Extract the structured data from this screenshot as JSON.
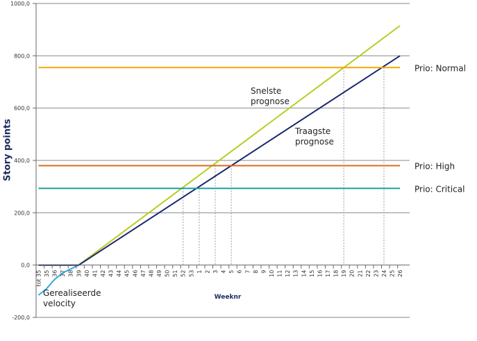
{
  "chart_data": {
    "type": "line",
    "xlabel": "Weeknr",
    "ylabel": "Story points",
    "ylim": [
      -200,
      1000
    ],
    "yticks": [
      -200,
      0,
      200,
      400,
      600,
      800,
      1000
    ],
    "ytick_labels": [
      "-200,0",
      "0,0",
      "200,0",
      "400,0",
      "600,0",
      "800,0",
      "1000,0"
    ],
    "grid": "horizontal",
    "categories": [
      "tot 35",
      "35",
      "36",
      "37",
      "38",
      "39",
      "40",
      "41",
      "42",
      "43",
      "44",
      "45",
      "46",
      "47",
      "48",
      "49",
      "50",
      "51",
      "52",
      "53",
      "1",
      "2",
      "3",
      "4",
      "5",
      "6",
      "7",
      "8",
      "9",
      "10",
      "11",
      "12",
      "13",
      "14",
      "15",
      "16",
      "17",
      "18",
      "19",
      "20",
      "21",
      "22",
      "23",
      "24",
      "25",
      "26"
    ],
    "series": [
      {
        "name": "Gerealiseerde velocity",
        "color": "#33aadd",
        "x": [
          0,
          1,
          2,
          3,
          4,
          5
        ],
        "values": [
          -115,
          -90,
          -55,
          -30,
          -15,
          0
        ]
      },
      {
        "name": "",
        "color": "#0d1b5c",
        "x": [
          0,
          5
        ],
        "values": [
          0,
          0
        ]
      },
      {
        "name": "Snelste prognose",
        "color": "#b8cc1f",
        "x": [
          5,
          45
        ],
        "values": [
          0,
          915
        ]
      },
      {
        "name": "Traagste prognose",
        "color": "#1a2670",
        "x": [
          5,
          45
        ],
        "values": [
          0,
          800
        ]
      },
      {
        "name": "Prio: Normal",
        "color": "#f2a800",
        "x": [
          0,
          45
        ],
        "values": [
          755,
          755
        ]
      },
      {
        "name": "Prio: High",
        "color": "#dd6a1a",
        "x": [
          0,
          45
        ],
        "values": [
          380,
          380
        ]
      },
      {
        "name": "Prio: Critical",
        "color": "#1aa0a8",
        "x": [
          0,
          45
        ],
        "values": [
          293,
          293
        ]
      }
    ],
    "intersection_x": [
      18,
      20,
      22,
      24,
      38,
      43
    ],
    "annotations": [
      {
        "id": "velocity",
        "lines": [
          "Gerealiseerde",
          "velocity"
        ]
      },
      {
        "id": "fast",
        "lines": [
          "Snelste",
          "prognose"
        ]
      },
      {
        "id": "slow",
        "lines": [
          "Traagste",
          "prognose"
        ]
      }
    ],
    "legend_labels": [
      "Prio: Normal",
      "Prio: High",
      "Prio: Critical"
    ]
  }
}
